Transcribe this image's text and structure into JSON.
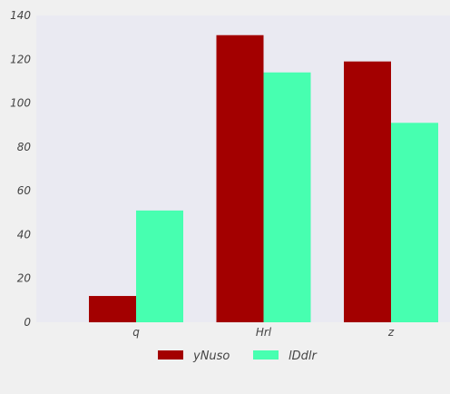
{
  "chart_data": {
    "type": "bar",
    "categories": [
      "q",
      "Hrl",
      "z"
    ],
    "series": [
      {
        "name": "yNuso",
        "values": [
          12,
          131,
          119
        ],
        "color": "#a30000"
      },
      {
        "name": "lDdlr",
        "values": [
          51,
          114,
          91
        ],
        "color": "#47ffb0"
      }
    ],
    "ylim": [
      0,
      140
    ],
    "yticks": [
      0,
      20,
      40,
      60,
      80,
      100,
      120,
      140
    ],
    "title": "",
    "xlabel": "",
    "ylabel": "",
    "grid": false,
    "legend_position": "bottom-center",
    "plot_background": "#eaeaf2",
    "page_background": "#f0f0f0"
  }
}
